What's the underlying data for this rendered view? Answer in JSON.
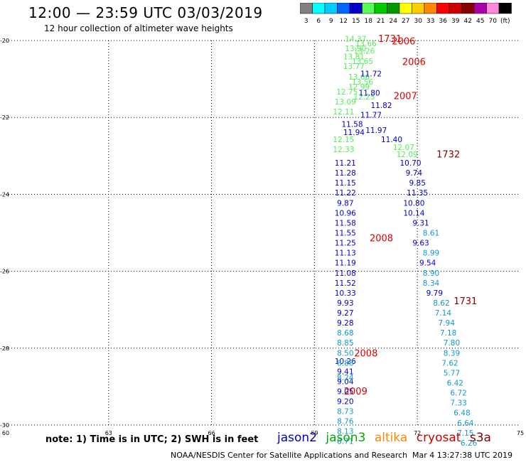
{
  "title": "12:00 — 23:59 UTC 03/03/2019",
  "subtitle": "12 hour collection of altimeter wave heights",
  "note": "note:  1) Time is in UTC;  2) SWH is in feet",
  "credit": "NOAA/NESDIS Center for Satellite Applications and Research",
  "timestamp": "Mar  4 13:27:38 UTC 2019",
  "legend": {
    "items": [
      {
        "label": "jason2",
        "color": "#0000cc"
      },
      {
        "label": "jason3",
        "color": "#00aa00"
      },
      {
        "label": "altika",
        "color": "#ff8800"
      },
      {
        "label": "cryosat",
        "color": "#cc0000"
      },
      {
        "label": "s3a",
        "color": "#880000"
      }
    ]
  },
  "color_scale": {
    "labels": [
      "3",
      "6",
      "9",
      "12",
      "15",
      "18",
      "21",
      "24",
      "27",
      "30",
      "33",
      "36",
      "39",
      "42",
      "45",
      "70",
      "(ft)"
    ],
    "colors": [
      "#808080",
      "#00ffff",
      "#00ccff",
      "#0066ff",
      "#0000cc",
      "#55ff55",
      "#00cc00",
      "#009900",
      "#ffff00",
      "#ffcc00",
      "#ff8800",
      "#ff0000",
      "#cc0000",
      "#880000",
      "#aa00aa",
      "#ff88dd",
      "#000000"
    ]
  },
  "chart_data": {
    "type": "scatter",
    "title": "12:00 — 23:59 UTC 03/03/2019",
    "subtitle": "12 hour collection of altimeter wave heights",
    "xlabel": "",
    "ylabel": "",
    "xlim": [
      60,
      75
    ],
    "ylim": [
      -30,
      -20
    ],
    "x_ticks": [
      {
        "v": 60,
        "label": "60"
      },
      {
        "v": 63,
        "label": "63"
      },
      {
        "v": 66,
        "label": "66"
      },
      {
        "v": 69,
        "label": "69"
      },
      {
        "v": 72,
        "label": "72"
      },
      {
        "v": 75,
        "label": "75"
      }
    ],
    "y_ticks": [
      {
        "v": -20,
        "label": "-20"
      },
      {
        "v": -22,
        "label": "-22"
      },
      {
        "v": -24,
        "label": "-24"
      },
      {
        "v": -26,
        "label": "-26"
      },
      {
        "v": -28,
        "label": "-28"
      },
      {
        "v": -30,
        "label": "-30"
      }
    ],
    "grid": true,
    "series": [
      {
        "name": "jason3",
        "color": "#55ee55",
        "points": [
          {
            "x": 70.2,
            "y": -19.95,
            "label": "14.37"
          },
          {
            "x": 70.2,
            "y": -20.2,
            "label": "13.90"
          },
          {
            "x": 70.15,
            "y": -20.42,
            "label": "13.81"
          },
          {
            "x": 70.15,
            "y": -20.67,
            "label": "13.77"
          },
          {
            "x": 70.3,
            "y": -20.94,
            "label": "13.66"
          },
          {
            "x": 70.4,
            "y": -21.07,
            "label": "13.56"
          },
          {
            "x": 70.3,
            "y": -21.2,
            "label": "12.99"
          },
          {
            "x": 69.95,
            "y": -21.33,
            "label": "12.75"
          },
          {
            "x": 69.9,
            "y": -21.59,
            "label": "13.09"
          },
          {
            "x": 69.85,
            "y": -21.85,
            "label": "12.11"
          },
          {
            "x": 69.85,
            "y": -22.57,
            "label": "12.15"
          },
          {
            "x": 69.85,
            "y": -22.83,
            "label": "12.33"
          },
          {
            "x": 71.6,
            "y": -22.77,
            "label": "12.07"
          },
          {
            "x": 71.7,
            "y": -22.96,
            "label": "12.09"
          }
        ]
      },
      {
        "name": "jason3-b",
        "color": "#55ee55",
        "points": [
          {
            "x": 70.5,
            "y": -20.07,
            "label": "13.66"
          },
          {
            "x": 70.45,
            "y": -20.27,
            "label": "13.26"
          },
          {
            "x": 70.4,
            "y": -20.54,
            "label": "13.65"
          },
          {
            "x": 70.45,
            "y": -21.46,
            "label": "12.25"
          }
        ]
      },
      {
        "name": "jason2",
        "color": "#0000cc",
        "points": [
          {
            "x": 70.65,
            "y": -20.86,
            "label": "11.72"
          },
          {
            "x": 70.6,
            "y": -21.36,
            "label": "11.80"
          },
          {
            "x": 70.95,
            "y": -21.68,
            "label": "11.82"
          },
          {
            "x": 70.65,
            "y": -21.93,
            "label": "11.77"
          },
          {
            "x": 70.1,
            "y": -22.17,
            "label": "11.58"
          },
          {
            "x": 70.15,
            "y": -22.38,
            "label": "11.94"
          },
          {
            "x": 70.8,
            "y": -22.33,
            "label": "11.97"
          },
          {
            "x": 71.25,
            "y": -22.57,
            "label": "11.40"
          },
          {
            "x": 69.9,
            "y": -23.18,
            "label": "11.21"
          },
          {
            "x": 69.9,
            "y": -23.44,
            "label": "11.28"
          },
          {
            "x": 69.9,
            "y": -23.7,
            "label": "11.15"
          },
          {
            "x": 69.9,
            "y": -23.96,
            "label": "11.22"
          },
          {
            "x": 69.9,
            "y": -24.22,
            "label": "9.87"
          },
          {
            "x": 69.9,
            "y": -24.48,
            "label": "10.96"
          },
          {
            "x": 69.9,
            "y": -24.74,
            "label": "11.58"
          },
          {
            "x": 69.9,
            "y": -25.0,
            "label": "11.55"
          },
          {
            "x": 69.9,
            "y": -25.26,
            "label": "11.25"
          },
          {
            "x": 69.9,
            "y": -25.52,
            "label": "11.13"
          },
          {
            "x": 69.9,
            "y": -25.78,
            "label": "11.19"
          },
          {
            "x": 69.9,
            "y": -26.04,
            "label": "11.08"
          },
          {
            "x": 69.9,
            "y": -26.3,
            "label": "11.52"
          },
          {
            "x": 69.9,
            "y": -26.56,
            "label": "10.33"
          },
          {
            "x": 69.9,
            "y": -26.82,
            "label": "9.93"
          },
          {
            "x": 69.9,
            "y": -27.08,
            "label": "9.27"
          },
          {
            "x": 69.9,
            "y": -27.34,
            "label": "9.28"
          },
          {
            "x": 69.9,
            "y": -28.86,
            "label": "9.04"
          },
          {
            "x": 69.9,
            "y": -29.12,
            "label": "9.05"
          },
          {
            "x": 69.9,
            "y": -29.38,
            "label": "9.20"
          },
          {
            "x": 71.8,
            "y": -23.18,
            "label": "10.70"
          },
          {
            "x": 71.9,
            "y": -23.44,
            "label": "9.74"
          },
          {
            "x": 72.0,
            "y": -23.7,
            "label": "9.85"
          },
          {
            "x": 72.0,
            "y": -23.96,
            "label": "11.35"
          },
          {
            "x": 71.9,
            "y": -24.22,
            "label": "10.80"
          },
          {
            "x": 71.9,
            "y": -24.48,
            "label": "10.14"
          },
          {
            "x": 72.1,
            "y": -24.74,
            "label": "9.31"
          },
          {
            "x": 72.1,
            "y": -25.26,
            "label": "9.63"
          },
          {
            "x": 72.3,
            "y": -25.78,
            "label": "9.54"
          },
          {
            "x": 72.5,
            "y": -26.56,
            "label": "9.79"
          },
          {
            "x": 69.9,
            "y": -28.34,
            "label": "10.26"
          },
          {
            "x": 69.9,
            "y": -28.6,
            "label": "9.41"
          }
        ]
      },
      {
        "name": "jason2-light",
        "color": "#1199cc",
        "points": [
          {
            "x": 72.4,
            "y": -25.0,
            "label": "8.61"
          },
          {
            "x": 72.4,
            "y": -25.52,
            "label": "8.99"
          },
          {
            "x": 72.4,
            "y": -26.04,
            "label": "8.90"
          },
          {
            "x": 72.4,
            "y": -26.3,
            "label": "8.34"
          },
          {
            "x": 72.7,
            "y": -26.82,
            "label": "8.62"
          },
          {
            "x": 72.75,
            "y": -27.08,
            "label": "7.14"
          },
          {
            "x": 72.85,
            "y": -27.34,
            "label": "7.94"
          },
          {
            "x": 72.9,
            "y": -27.6,
            "label": "7.18"
          },
          {
            "x": 73.0,
            "y": -27.86,
            "label": "7.80"
          },
          {
            "x": 73.0,
            "y": -28.12,
            "label": "8.39"
          },
          {
            "x": 72.95,
            "y": -28.38,
            "label": "7.62"
          },
          {
            "x": 73.0,
            "y": -28.64,
            "label": "5.77"
          },
          {
            "x": 73.1,
            "y": -28.9,
            "label": "6.42"
          },
          {
            "x": 73.2,
            "y": -29.16,
            "label": "6.72"
          },
          {
            "x": 73.2,
            "y": -29.42,
            "label": "7.33"
          },
          {
            "x": 73.3,
            "y": -29.68,
            "label": "6.48"
          },
          {
            "x": 73.4,
            "y": -29.94,
            "label": "6.64"
          },
          {
            "x": 73.4,
            "y": -30.2,
            "label": "7.15"
          },
          {
            "x": 73.5,
            "y": -30.46,
            "label": "6.26"
          },
          {
            "x": 69.9,
            "y": -27.6,
            "label": "8.68"
          },
          {
            "x": 69.9,
            "y": -27.86,
            "label": "8.85"
          },
          {
            "x": 69.9,
            "y": -28.12,
            "label": "8.50"
          },
          {
            "x": 69.9,
            "y": -28.38,
            "label": "8.88"
          },
          {
            "x": 69.9,
            "y": -28.76,
            "label": "8.24"
          },
          {
            "x": 69.9,
            "y": -29.64,
            "label": "8.73"
          },
          {
            "x": 69.9,
            "y": -29.9,
            "label": "8.76"
          },
          {
            "x": 69.9,
            "y": -30.16,
            "label": "8.13"
          },
          {
            "x": 69.9,
            "y": -30.42,
            "label": "8.71"
          }
        ]
      },
      {
        "name": "cryosat",
        "color": "#dd0000",
        "points": [
          {
            "x": 71.2,
            "y": -19.96,
            "label": "1731"
          },
          {
            "x": 71.6,
            "y": -20.03,
            "label": "2006"
          },
          {
            "x": 71.9,
            "y": -20.56,
            "label": "2006"
          },
          {
            "x": 71.65,
            "y": -21.45,
            "label": "2007"
          },
          {
            "x": 70.95,
            "y": -25.15,
            "label": "2008"
          },
          {
            "x": 70.5,
            "y": -28.14,
            "label": "2008"
          },
          {
            "x": 70.2,
            "y": -29.13,
            "label": "2009"
          }
        ]
      },
      {
        "name": "s3a",
        "color": "#880000",
        "points": [
          {
            "x": 72.9,
            "y": -22.97,
            "label": "1732"
          },
          {
            "x": 73.4,
            "y": -26.78,
            "label": "1731"
          }
        ]
      }
    ]
  }
}
